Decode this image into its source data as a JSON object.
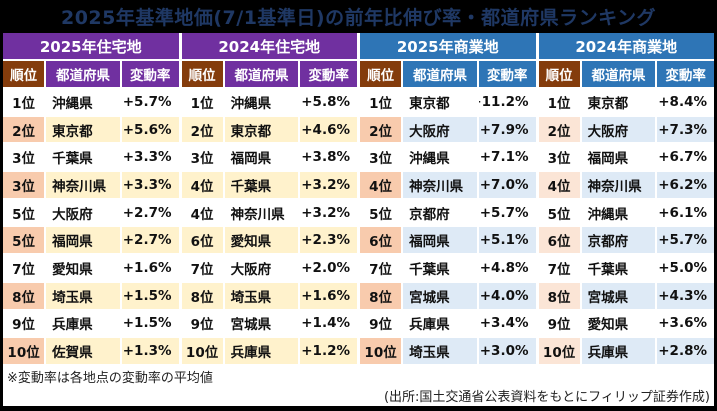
{
  "title": "2025年基準地価(7/1基準日)の前年比伸び率・都道府県ランキング",
  "footnote": "※変動率は各地点の変動率の平均値",
  "source": "(出所:国土交通省公表資料をもとにフィリップ証券作成)",
  "columns": {
    "rank": "順位",
    "prefecture": "都道府県",
    "rate": "変動率"
  },
  "colors": {
    "title_bar_bg": "#000000",
    "title_text": "#1F3864",
    "residential_header": "#7030A0",
    "commercial_header": "#2E75B6",
    "rank_header": "#843C0C",
    "shade_rank_peach": "#F8CBAD",
    "shade_rank_peach_light": "#FBE5D6",
    "shade_cream": "#FFF2CC",
    "shade_light_blue": "#DEEAF6"
  },
  "groups": [
    {
      "label": "2025年住宅地",
      "theme": "purple",
      "rank_shade": "#F8CBAD",
      "cell_shade": "#FFF2CC",
      "rows": [
        {
          "rank": "1位",
          "pref": "沖縄県",
          "rate": "+5.7%"
        },
        {
          "rank": "2位",
          "pref": "東京都",
          "rate": "+5.6%"
        },
        {
          "rank": "3位",
          "pref": "千葉県",
          "rate": "+3.3%"
        },
        {
          "rank": "3位",
          "pref": "神奈川県",
          "rate": "+3.3%"
        },
        {
          "rank": "5位",
          "pref": "大阪府",
          "rate": "+2.7%"
        },
        {
          "rank": "5位",
          "pref": "福岡県",
          "rate": "+2.7%"
        },
        {
          "rank": "7位",
          "pref": "愛知県",
          "rate": "+1.6%"
        },
        {
          "rank": "8位",
          "pref": "埼玉県",
          "rate": "+1.5%"
        },
        {
          "rank": "9位",
          "pref": "兵庫県",
          "rate": "+1.5%"
        },
        {
          "rank": "10位",
          "pref": "佐賀県",
          "rate": "+1.3%"
        }
      ]
    },
    {
      "label": "2024年住宅地",
      "theme": "purple",
      "rank_shade": "#FFF2CC",
      "cell_shade": "#FFF2CC",
      "rows": [
        {
          "rank": "1位",
          "pref": "沖縄県",
          "rate": "+5.8%"
        },
        {
          "rank": "2位",
          "pref": "東京都",
          "rate": "+4.6%"
        },
        {
          "rank": "3位",
          "pref": "福岡県",
          "rate": "+3.8%"
        },
        {
          "rank": "4位",
          "pref": "千葉県",
          "rate": "+3.2%"
        },
        {
          "rank": "4位",
          "pref": "神奈川県",
          "rate": "+3.2%"
        },
        {
          "rank": "6位",
          "pref": "愛知県",
          "rate": "+2.3%"
        },
        {
          "rank": "7位",
          "pref": "大阪府",
          "rate": "+2.0%"
        },
        {
          "rank": "8位",
          "pref": "埼玉県",
          "rate": "+1.6%"
        },
        {
          "rank": "9位",
          "pref": "宮城県",
          "rate": "+1.4%"
        },
        {
          "rank": "10位",
          "pref": "兵庫県",
          "rate": "+1.2%"
        }
      ]
    },
    {
      "label": "2025年商業地",
      "theme": "blue",
      "rank_shade": "#F8CBAD",
      "cell_shade": "#DEEAF6",
      "rows": [
        {
          "rank": "1位",
          "pref": "東京都",
          "rate": "+11.2%"
        },
        {
          "rank": "2位",
          "pref": "大阪府",
          "rate": "+7.9%"
        },
        {
          "rank": "3位",
          "pref": "沖縄県",
          "rate": "+7.1%"
        },
        {
          "rank": "4位",
          "pref": "神奈川県",
          "rate": "+7.0%"
        },
        {
          "rank": "5位",
          "pref": "京都府",
          "rate": "+5.7%"
        },
        {
          "rank": "6位",
          "pref": "福岡県",
          "rate": "+5.1%"
        },
        {
          "rank": "7位",
          "pref": "千葉県",
          "rate": "+4.8%"
        },
        {
          "rank": "8位",
          "pref": "宮城県",
          "rate": "+4.0%"
        },
        {
          "rank": "9位",
          "pref": "兵庫県",
          "rate": "+3.4%"
        },
        {
          "rank": "10位",
          "pref": "埼玉県",
          "rate": "+3.0%"
        }
      ]
    },
    {
      "label": "2024年商業地",
      "theme": "blue",
      "rank_shade": "#FBE5D6",
      "cell_shade": "#DEEAF6",
      "rows": [
        {
          "rank": "1位",
          "pref": "東京都",
          "rate": "+8.4%"
        },
        {
          "rank": "2位",
          "pref": "大阪府",
          "rate": "+7.3%"
        },
        {
          "rank": "3位",
          "pref": "福岡県",
          "rate": "+6.7%"
        },
        {
          "rank": "4位",
          "pref": "神奈川県",
          "rate": "+6.2%"
        },
        {
          "rank": "5位",
          "pref": "沖縄県",
          "rate": "+6.1%"
        },
        {
          "rank": "6位",
          "pref": "京都府",
          "rate": "+5.7%"
        },
        {
          "rank": "7位",
          "pref": "千葉県",
          "rate": "+5.0%"
        },
        {
          "rank": "8位",
          "pref": "宮城県",
          "rate": "+4.3%"
        },
        {
          "rank": "9位",
          "pref": "愛知県",
          "rate": "+3.6%"
        },
        {
          "rank": "10位",
          "pref": "兵庫県",
          "rate": "+2.8%"
        }
      ]
    }
  ],
  "chart_data": {
    "type": "table",
    "title": "2025年基準地価(7/1基準日)の前年比伸び率・都道府県ランキング",
    "columns": [
      "順位",
      "都道府県",
      "変動率"
    ],
    "series": [
      {
        "name": "2025年住宅地",
        "rows": [
          [
            "1位",
            "沖縄県",
            "+5.7%"
          ],
          [
            "2位",
            "東京都",
            "+5.6%"
          ],
          [
            "3位",
            "千葉県",
            "+3.3%"
          ],
          [
            "3位",
            "神奈川県",
            "+3.3%"
          ],
          [
            "5位",
            "大阪府",
            "+2.7%"
          ],
          [
            "5位",
            "福岡県",
            "+2.7%"
          ],
          [
            "7位",
            "愛知県",
            "+1.6%"
          ],
          [
            "8位",
            "埼玉県",
            "+1.5%"
          ],
          [
            "9位",
            "兵庫県",
            "+1.5%"
          ],
          [
            "10位",
            "佐賀県",
            "+1.3%"
          ]
        ]
      },
      {
        "name": "2024年住宅地",
        "rows": [
          [
            "1位",
            "沖縄県",
            "+5.8%"
          ],
          [
            "2位",
            "東京都",
            "+4.6%"
          ],
          [
            "3位",
            "福岡県",
            "+3.8%"
          ],
          [
            "4位",
            "千葉県",
            "+3.2%"
          ],
          [
            "4位",
            "神奈川県",
            "+3.2%"
          ],
          [
            "6位",
            "愛知県",
            "+2.3%"
          ],
          [
            "7位",
            "大阪府",
            "+2.0%"
          ],
          [
            "8位",
            "埼玉県",
            "+1.6%"
          ],
          [
            "9位",
            "宮城県",
            "+1.4%"
          ],
          [
            "10位",
            "兵庫県",
            "+1.2%"
          ]
        ]
      },
      {
        "name": "2025年商業地",
        "rows": [
          [
            "1位",
            "東京都",
            "+11.2%"
          ],
          [
            "2位",
            "大阪府",
            "+7.9%"
          ],
          [
            "3位",
            "沖縄県",
            "+7.1%"
          ],
          [
            "4位",
            "神奈川県",
            "+7.0%"
          ],
          [
            "5位",
            "京都府",
            "+5.7%"
          ],
          [
            "6位",
            "福岡県",
            "+5.1%"
          ],
          [
            "7位",
            "千葉県",
            "+4.8%"
          ],
          [
            "8位",
            "宮城県",
            "+4.0%"
          ],
          [
            "9位",
            "兵庫県",
            "+3.4%"
          ],
          [
            "10位",
            "埼玉県",
            "+3.0%"
          ]
        ]
      },
      {
        "name": "2024年商業地",
        "rows": [
          [
            "1位",
            "東京都",
            "+8.4%"
          ],
          [
            "2位",
            "大阪府",
            "+7.3%"
          ],
          [
            "3位",
            "福岡県",
            "+6.7%"
          ],
          [
            "4位",
            "神奈川県",
            "+6.2%"
          ],
          [
            "5位",
            "沖縄県",
            "+6.1%"
          ],
          [
            "6位",
            "京都府",
            "+5.7%"
          ],
          [
            "7位",
            "千葉県",
            "+5.0%"
          ],
          [
            "8位",
            "宮城県",
            "+4.3%"
          ],
          [
            "9位",
            "愛知県",
            "+3.6%"
          ],
          [
            "10位",
            "兵庫県",
            "+2.8%"
          ]
        ]
      }
    ],
    "footnote": "※変動率は各地点の変動率の平均値",
    "source": "(出所:国土交通省公表資料をもとにフィリップ証券作成)"
  }
}
